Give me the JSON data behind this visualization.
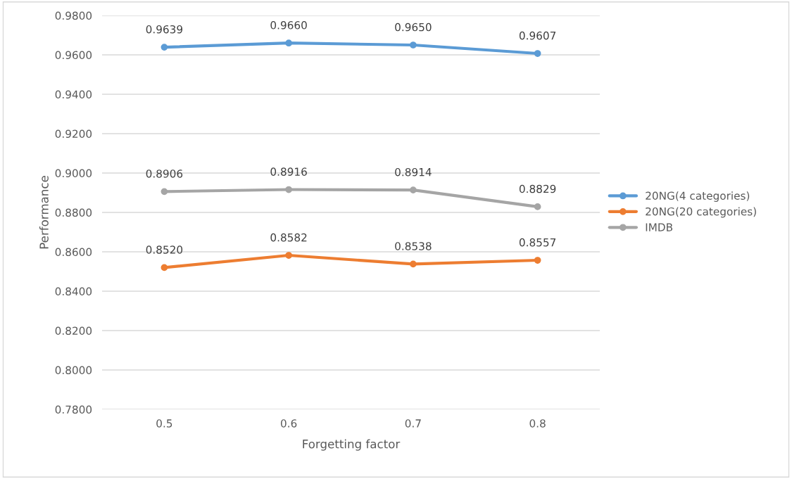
{
  "chart_data": {
    "type": "line",
    "xlabel": "Forgetting factor",
    "ylabel": "Performance",
    "categories": [
      "0.5",
      "0.6",
      "0.7",
      "0.8"
    ],
    "series": [
      {
        "name": "20NG(4 categories)",
        "color": "#5b9bd5",
        "values": [
          0.9639,
          0.966,
          0.965,
          0.9607
        ],
        "value_labels": [
          "0.9639",
          "0.9660",
          "0.9650",
          "0.9607"
        ]
      },
      {
        "name": "20NG(20 categories)",
        "color": "#ed7d31",
        "values": [
          0.852,
          0.8582,
          0.8538,
          0.8557
        ],
        "value_labels": [
          "0.8520",
          "0.8582",
          "0.8538",
          "0.8557"
        ]
      },
      {
        "name": "IMDB",
        "color": "#a5a5a5",
        "values": [
          0.8906,
          0.8916,
          0.8914,
          0.8829
        ],
        "value_labels": [
          "0.8906",
          "0.8916",
          "0.8914",
          "0.8829"
        ]
      }
    ],
    "ylim": [
      0.78,
      0.98
    ],
    "yticks": [
      {
        "value": 0.78,
        "label": "0.7800"
      },
      {
        "value": 0.8,
        "label": "0.8000"
      },
      {
        "value": 0.82,
        "label": "0.8200"
      },
      {
        "value": 0.84,
        "label": "0.8400"
      },
      {
        "value": 0.86,
        "label": "0.8600"
      },
      {
        "value": 0.88,
        "label": "0.8800"
      },
      {
        "value": 0.9,
        "label": "0.9000"
      },
      {
        "value": 0.92,
        "label": "0.9200"
      },
      {
        "value": 0.94,
        "label": "0.9400"
      },
      {
        "value": 0.96,
        "label": "0.9600"
      },
      {
        "value": 0.98,
        "label": "0.9800"
      }
    ],
    "grid": "y",
    "legend": "right",
    "marker": "circle",
    "line_style": "solid"
  }
}
